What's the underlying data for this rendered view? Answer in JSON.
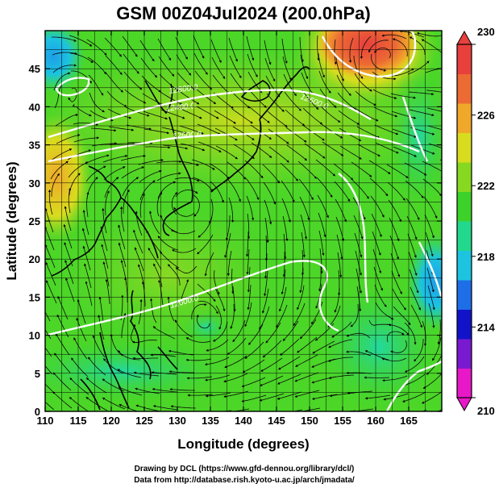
{
  "chart_data": {
    "type": "heatmap",
    "title": "GSM 00Z04Jul2024 (200.0hPa)",
    "xlabel": "Longitude (degrees)",
    "ylabel": "Latitude  (degrees)",
    "xlim": [
      110,
      170
    ],
    "ylim": [
      0,
      50
    ],
    "x_ticks": [
      110,
      115,
      120,
      125,
      130,
      135,
      140,
      145,
      150,
      155,
      160,
      165
    ],
    "y_ticks": [
      0,
      5,
      10,
      15,
      20,
      25,
      30,
      35,
      40,
      45
    ],
    "colorbar": {
      "min": 210,
      "max": 230,
      "ticks": [
        210,
        214,
        218,
        222,
        226,
        230
      ],
      "colors": [
        "#e817c8",
        "#7a1ad0",
        "#1212c8",
        "#1e6ee8",
        "#1cc4e0",
        "#22d88c",
        "#3cd22a",
        "#86d820",
        "#d8dc1e",
        "#f0a82a",
        "#ec6a34",
        "#e8403c"
      ]
    },
    "contour_labels": [
      "12200.0",
      "12400.0",
      "12600.0",
      "12800.0"
    ],
    "grid": true,
    "streamlines": true
  },
  "credits": {
    "line1": "Drawing by DCL (https://www.gfd-dennou.org/library/dcl/)",
    "line2": "Data from http://database.rish.kyoto-u.ac.jp/arch/jmadata/"
  }
}
